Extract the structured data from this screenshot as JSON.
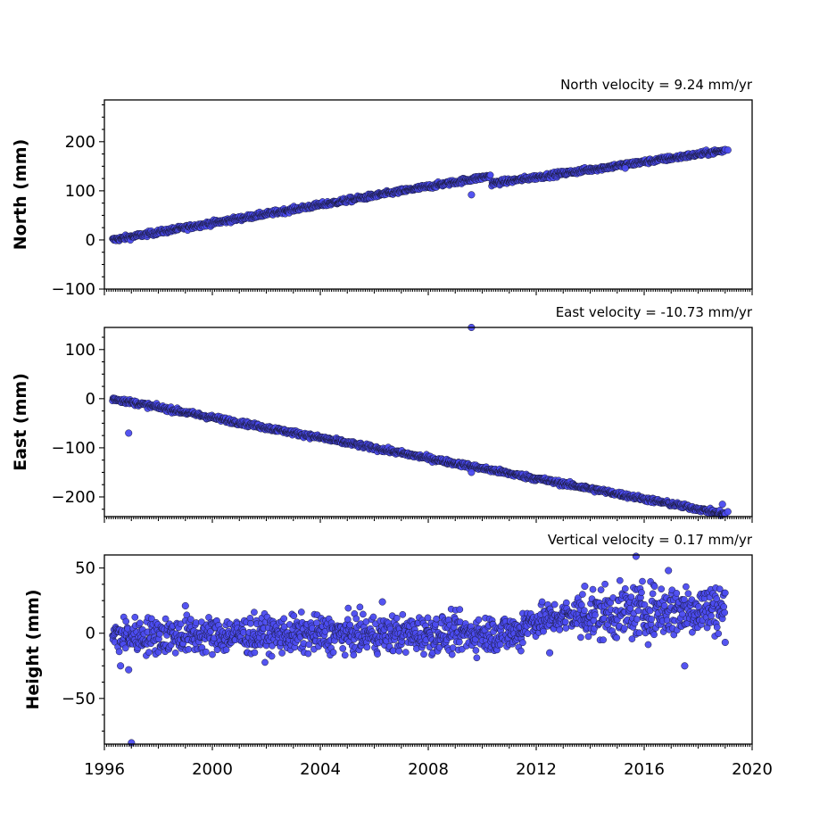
{
  "chart_data": [
    {
      "type": "scatter",
      "title": "North velocity = 9.24 mm/yr",
      "ylabel": "North (mm)",
      "xlim": [
        1996,
        2020
      ],
      "ylim": [
        -100,
        285
      ],
      "yticks": [
        -100,
        0,
        100,
        200
      ],
      "yticklabels": [
        "−100",
        "0",
        "100",
        "200"
      ],
      "xticks": [
        1996,
        2000,
        2004,
        2008,
        2012,
        2016,
        2020
      ],
      "xticklabels": [],
      "series": [
        {
          "color": "#4b4bf0",
          "segments": [
            {
              "x0": 1996.3,
              "y0": 0,
              "x1": 2010.3,
              "y1": 130,
              "noise": 2.5
            },
            {
              "x0": 2010.35,
              "y0": 115,
              "x1": 2019.0,
              "y1": 182,
              "noise": 2.5
            }
          ],
          "outliers": [
            {
              "x": 2009.6,
              "y": 92
            },
            {
              "x": 2015.3,
              "y": 146
            },
            {
              "x": 2019.1,
              "y": 183
            }
          ]
        }
      ]
    },
    {
      "type": "scatter",
      "title": "East velocity = -10.73 mm/yr",
      "ylabel": "East (mm)",
      "xlim": [
        1996,
        2020
      ],
      "ylim": [
        -240,
        145
      ],
      "yticks": [
        -200,
        -100,
        0,
        100
      ],
      "yticklabels": [
        "−200",
        "−100",
        "0",
        "100"
      ],
      "xticks": [
        1996,
        2000,
        2004,
        2008,
        2012,
        2016,
        2020
      ],
      "xticklabels": [],
      "series": [
        {
          "color": "#4b4bf0",
          "segments": [
            {
              "x0": 1996.3,
              "y0": 0,
              "x1": 2019.0,
              "y1": -235,
              "noise": 2.5
            }
          ],
          "outliers": [
            {
              "x": 1996.9,
              "y": -70
            },
            {
              "x": 2009.6,
              "y": 145
            },
            {
              "x": 2009.6,
              "y": -150
            },
            {
              "x": 2018.9,
              "y": -215
            },
            {
              "x": 2019.1,
              "y": -230
            }
          ]
        }
      ]
    },
    {
      "type": "scatter",
      "title": "Vertical velocity = 0.17 mm/yr",
      "ylabel": "Height (mm)",
      "xlim": [
        1996,
        2020
      ],
      "ylim": [
        -85,
        60
      ],
      "yticks": [
        -50,
        0,
        50
      ],
      "yticklabels": [
        "−50",
        "0",
        "50"
      ],
      "xticks": [
        1996,
        2000,
        2004,
        2008,
        2012,
        2016,
        2020
      ],
      "xticklabels": [
        "1996",
        "2000",
        "2004",
        "2008",
        "2012",
        "2016",
        "2020"
      ],
      "series": [
        {
          "color": "#4b4bf0",
          "segments": [
            {
              "x0": 1996.3,
              "y0": -2,
              "x1": 2011.5,
              "y1": 0,
              "noise": 7
            },
            {
              "x0": 2011.5,
              "y0": 8,
              "x1": 2013.5,
              "y1": 14,
              "noise": 6
            },
            {
              "x0": 2013.5,
              "y0": 14,
              "x1": 2019.0,
              "y1": 20,
              "noise": 10
            }
          ],
          "outliers": [
            {
              "x": 1997.0,
              "y": -84
            },
            {
              "x": 1996.6,
              "y": -25
            },
            {
              "x": 1996.9,
              "y": -28
            },
            {
              "x": 1999.0,
              "y": 21
            },
            {
              "x": 2006.3,
              "y": 24
            },
            {
              "x": 2012.5,
              "y": -15
            },
            {
              "x": 2013.8,
              "y": 36
            },
            {
              "x": 2015.7,
              "y": 59
            },
            {
              "x": 2016.9,
              "y": 48
            },
            {
              "x": 2017.5,
              "y": -25
            },
            {
              "x": 2019.0,
              "y": -7
            }
          ]
        }
      ]
    }
  ]
}
